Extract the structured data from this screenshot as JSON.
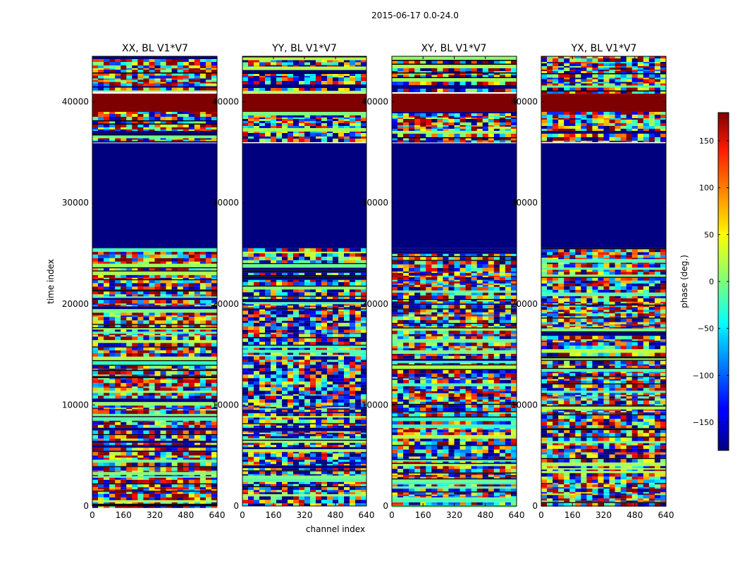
{
  "chart_data": {
    "type": "heatmap",
    "suptitle": "2015-06-17 0.0-24.0",
    "xlabel": "channel index",
    "ylabel": "time index",
    "xlim": [
      0,
      640
    ],
    "ylim": [
      0,
      44500
    ],
    "xticks": [
      "0",
      "160",
      "320",
      "480",
      "640"
    ],
    "yticks": [
      "0",
      "10000",
      "20000",
      "30000",
      "40000"
    ],
    "panels": [
      {
        "title": "XX, BL V1*V7"
      },
      {
        "title": "YY, BL V1*V7"
      },
      {
        "title": "XY, BL V1*V7"
      },
      {
        "title": "YX, BL V1*V7"
      }
    ],
    "colorbar": {
      "label": "phase (deg.)",
      "range": [
        -180,
        180
      ],
      "ticks": [
        "150",
        "100",
        "50",
        "0",
        "−50",
        "−100",
        "−150"
      ],
      "colormap": "jet"
    },
    "bands": {
      "phase_minus_180": [
        25500,
        35900
      ],
      "phase_plus_180": [
        39000,
        40800
      ]
    }
  }
}
